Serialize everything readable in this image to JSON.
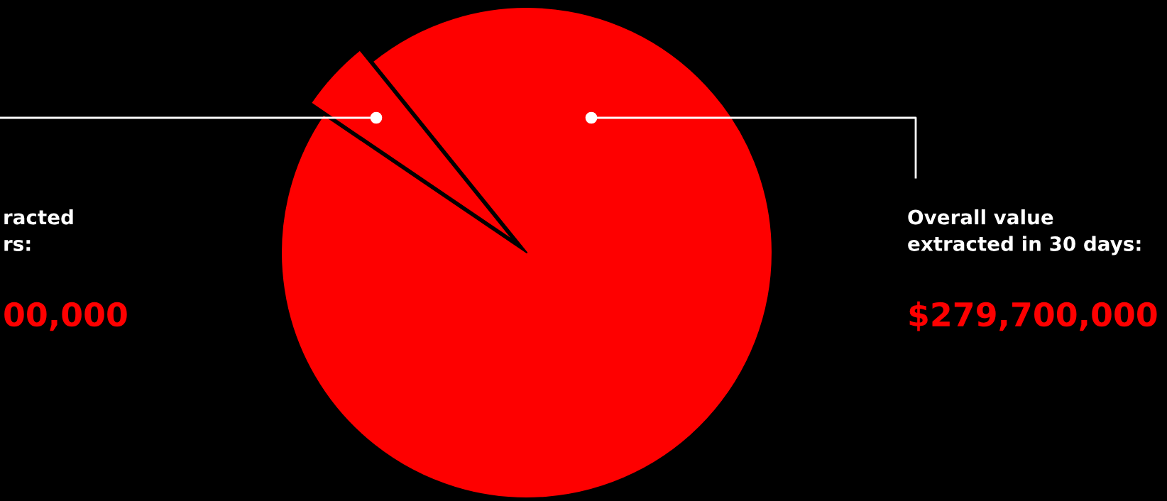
{
  "chart_data": {
    "type": "pie",
    "categories": [
      null,
      null
    ],
    "values": [
      4.7,
      95.3
    ],
    "colors": [
      "#fe0000",
      "#fe0000"
    ],
    "annotations": [
      "racted\nrs:",
      "00,000",
      "Overall value\nextracted in 30 days:",
      "$279,700,000"
    ]
  }
}
